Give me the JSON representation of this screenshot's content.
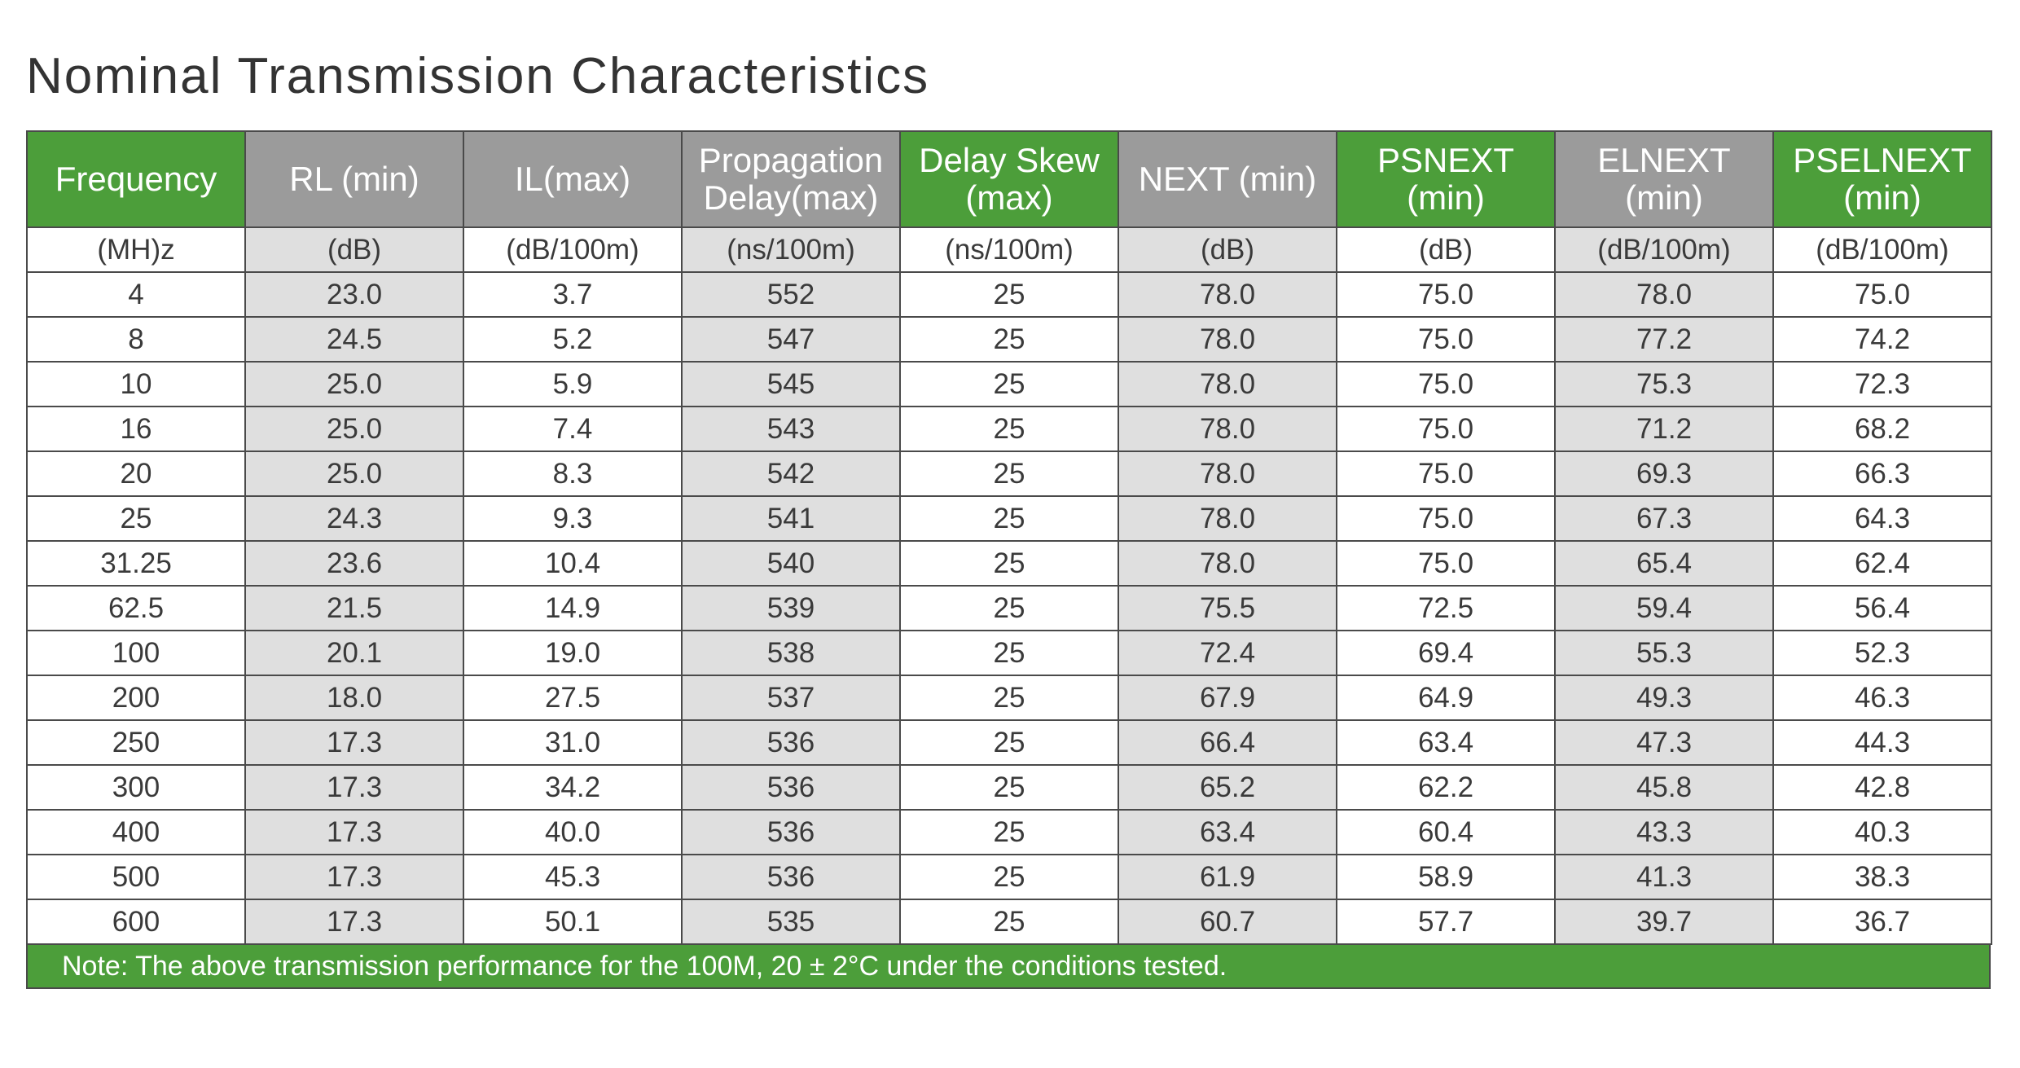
{
  "title": "Nominal  Transmission  Characteristics",
  "table": {
    "headers": [
      {
        "label": "Frequency",
        "style": "green"
      },
      {
        "label": "RL (min)",
        "style": "gray"
      },
      {
        "label": "IL(max)",
        "style": "gray"
      },
      {
        "label": "Propagation Delay(max)",
        "style": "gray"
      },
      {
        "label": "Delay Skew (max)",
        "style": "green"
      },
      {
        "label": "NEXT (min)",
        "style": "gray"
      },
      {
        "label": "PSNEXT (min)",
        "style": "green"
      },
      {
        "label": "ELNEXT (min)",
        "style": "gray"
      },
      {
        "label": "PSELNEXT (min)",
        "style": "green"
      }
    ],
    "units": [
      "(MH)z",
      "(dB)",
      "(dB/100m)",
      "(ns/100m)",
      "(ns/100m)",
      "(dB)",
      "(dB)",
      "(dB/100m)",
      "(dB/100m)"
    ],
    "column_shading": [
      "plain",
      "shade",
      "plain",
      "shade",
      "plain",
      "shade",
      "plain",
      "shade",
      "plain"
    ],
    "rows": [
      [
        "4",
        "23.0",
        "3.7",
        "552",
        "25",
        "78.0",
        "75.0",
        "78.0",
        "75.0"
      ],
      [
        "8",
        "24.5",
        "5.2",
        "547",
        "25",
        "78.0",
        "75.0",
        "77.2",
        "74.2"
      ],
      [
        "10",
        "25.0",
        "5.9",
        "545",
        "25",
        "78.0",
        "75.0",
        "75.3",
        "72.3"
      ],
      [
        "16",
        "25.0",
        "7.4",
        "543",
        "25",
        "78.0",
        "75.0",
        "71.2",
        "68.2"
      ],
      [
        "20",
        "25.0",
        "8.3",
        "542",
        "25",
        "78.0",
        "75.0",
        "69.3",
        "66.3"
      ],
      [
        "25",
        "24.3",
        "9.3",
        "541",
        "25",
        "78.0",
        "75.0",
        "67.3",
        "64.3"
      ],
      [
        "31.25",
        "23.6",
        "10.4",
        "540",
        "25",
        "78.0",
        "75.0",
        "65.4",
        "62.4"
      ],
      [
        "62.5",
        "21.5",
        "14.9",
        "539",
        "25",
        "75.5",
        "72.5",
        "59.4",
        "56.4"
      ],
      [
        "100",
        "20.1",
        "19.0",
        "538",
        "25",
        "72.4",
        "69.4",
        "55.3",
        "52.3"
      ],
      [
        "200",
        "18.0",
        "27.5",
        "537",
        "25",
        "67.9",
        "64.9",
        "49.3",
        "46.3"
      ],
      [
        "250",
        "17.3",
        "31.0",
        "536",
        "25",
        "66.4",
        "63.4",
        "47.3",
        "44.3"
      ],
      [
        "300",
        "17.3",
        "34.2",
        "536",
        "25",
        "65.2",
        "62.2",
        "45.8",
        "42.8"
      ],
      [
        "400",
        "17.3",
        "40.0",
        "536",
        "25",
        "63.4",
        "60.4",
        "43.3",
        "40.3"
      ],
      [
        "500",
        "17.3",
        "45.3",
        "536",
        "25",
        "61.9",
        "58.9",
        "41.3",
        "38.3"
      ],
      [
        "600",
        "17.3",
        "50.1",
        "535",
        "25",
        "60.7",
        "57.7",
        "39.7",
        "36.7"
      ]
    ]
  },
  "note": "Note: The above transmission performance for the 100M, 20 ± 2°C under the conditions tested.",
  "colors": {
    "header_green": "#4c9e3a",
    "header_gray": "#9b9b9b",
    "shaded_cell": "#dfdfdf",
    "border": "#4a4a4a"
  }
}
